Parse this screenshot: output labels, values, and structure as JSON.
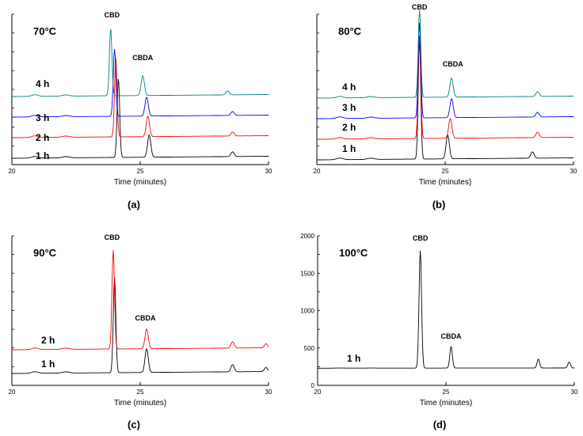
{
  "chart_data": [
    {
      "type": "line",
      "panel_label": "(a)",
      "annotation": "70°C",
      "xlabel": "Time (minutes)",
      "xlim": [
        20,
        30
      ],
      "x_ticks": [
        "20",
        "25",
        "30"
      ],
      "y_ticks": [],
      "peak_labels": [
        {
          "text": "CBD",
          "x": 23.9
        },
        {
          "text": "CBDA",
          "x": 25.1
        }
      ],
      "series": [
        {
          "name": "1 h",
          "color": "#000000",
          "baseline": 0,
          "peaks": [
            {
              "x": 24.15,
              "h": 100
            },
            {
              "x": 25.35,
              "h": 28
            },
            {
              "x": 28.6,
              "h": 6
            }
          ]
        },
        {
          "name": "2 h",
          "color": "#ff0000",
          "baseline": 26,
          "peaks": [
            {
              "x": 24.05,
              "h": 100
            },
            {
              "x": 25.3,
              "h": 26
            },
            {
              "x": 28.6,
              "h": 5
            }
          ]
        },
        {
          "name": "3 h",
          "color": "#0000ff",
          "baseline": 52,
          "peaks": [
            {
              "x": 24.0,
              "h": 85
            },
            {
              "x": 25.25,
              "h": 24
            },
            {
              "x": 28.6,
              "h": 5
            }
          ]
        },
        {
          "name": "4 h",
          "color": "#008080",
          "baseline": 78,
          "peaks": [
            {
              "x": 23.85,
              "h": 85
            },
            {
              "x": 25.1,
              "h": 25
            },
            {
              "x": 28.4,
              "h": 5
            }
          ]
        }
      ]
    },
    {
      "type": "line",
      "panel_label": "(b)",
      "annotation": "80°C",
      "xlabel": "Time (minutes)",
      "xlim": [
        20,
        30
      ],
      "x_ticks": [
        "20",
        "25",
        "30"
      ],
      "y_ticks": [],
      "peak_labels": [
        {
          "text": "CBD",
          "x": 24.0
        },
        {
          "text": "CBDA",
          "x": 25.3
        }
      ],
      "series": [
        {
          "name": "1 h",
          "color": "#000000",
          "baseline": 0,
          "peaks": [
            {
              "x": 24.0,
              "h": 150
            },
            {
              "x": 25.1,
              "h": 30
            },
            {
              "x": 28.4,
              "h": 8
            }
          ]
        },
        {
          "name": "2 h",
          "color": "#ff0000",
          "baseline": 26,
          "peaks": [
            {
              "x": 24.0,
              "h": 130
            },
            {
              "x": 25.2,
              "h": 25
            },
            {
              "x": 28.6,
              "h": 7
            }
          ]
        },
        {
          "name": "3 h",
          "color": "#0000ff",
          "baseline": 52,
          "peaks": [
            {
              "x": 24.0,
              "h": 120
            },
            {
              "x": 25.25,
              "h": 24
            },
            {
              "x": 28.6,
              "h": 6
            }
          ]
        },
        {
          "name": "4 h",
          "color": "#008080",
          "baseline": 78,
          "peaks": [
            {
              "x": 24.0,
              "h": 110
            },
            {
              "x": 25.25,
              "h": 24
            },
            {
              "x": 28.6,
              "h": 6
            }
          ]
        }
      ]
    },
    {
      "type": "line",
      "panel_label": "(c)",
      "annotation": "90°C",
      "xlabel": "Time (minutes)",
      "xlim": [
        20,
        30
      ],
      "x_ticks": [
        "20",
        "25",
        "30"
      ],
      "y_ticks": [],
      "peak_labels": [
        {
          "text": "CBD",
          "x": 23.9
        },
        {
          "text": "CBDA",
          "x": 25.2
        }
      ],
      "series": [
        {
          "name": "1 h",
          "color": "#000000",
          "baseline": 0,
          "peaks": [
            {
              "x": 24.0,
              "h": 120
            },
            {
              "x": 25.25,
              "h": 30
            },
            {
              "x": 28.6,
              "h": 9
            },
            {
              "x": 29.9,
              "h": 5
            }
          ]
        },
        {
          "name": "2 h",
          "color": "#ff0000",
          "baseline": 30,
          "peaks": [
            {
              "x": 23.95,
              "h": 125
            },
            {
              "x": 25.25,
              "h": 25
            },
            {
              "x": 28.6,
              "h": 8
            },
            {
              "x": 29.9,
              "h": 5
            }
          ]
        }
      ]
    },
    {
      "type": "line",
      "panel_label": "(d)",
      "annotation": "100°C",
      "xlabel": "Time (minutes)",
      "xlim": [
        20,
        30
      ],
      "ylim": [
        0,
        2000
      ],
      "x_ticks": [
        "20",
        "25",
        "30"
      ],
      "y_ticks": [
        "0",
        "500",
        "1000",
        "1500",
        "2000"
      ],
      "peak_labels": [
        {
          "text": "CBD",
          "x": 24.0
        },
        {
          "text": "CBDA",
          "x": 25.2
        }
      ],
      "series": [
        {
          "name": "1 h",
          "color": "#000000",
          "baseline": 230,
          "peaks": [
            {
              "x": 24.0,
              "h": 1570
            },
            {
              "x": 25.2,
              "h": 290
            },
            {
              "x": 28.6,
              "h": 120
            },
            {
              "x": 29.8,
              "h": 80
            }
          ]
        }
      ]
    }
  ]
}
